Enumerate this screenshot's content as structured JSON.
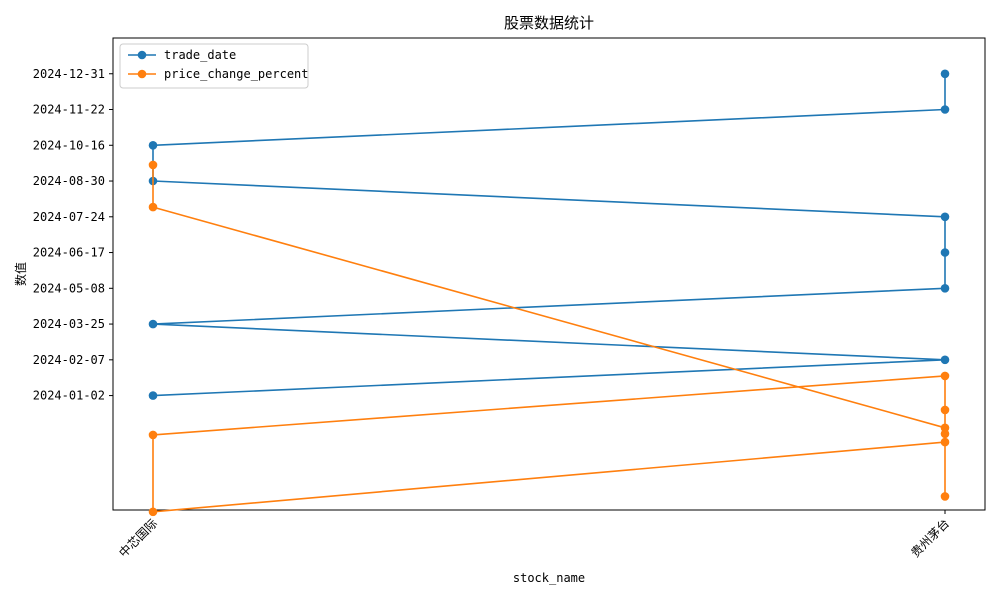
{
  "chart_data": {
    "type": "line",
    "title": "股票数据统计",
    "xlabel": "stock_name",
    "ylabel": "数值",
    "categories": [
      "中芯国际",
      "贵州茅台"
    ],
    "y_ticks": [
      "2024-01-02",
      "2024-02-07",
      "2024-03-25",
      "2024-05-08",
      "2024-06-17",
      "2024-07-24",
      "2024-08-30",
      "2024-10-16",
      "2024-11-22",
      "2024-12-31"
    ],
    "ylim": [
      -2.2,
      11.0
    ],
    "grid": false,
    "legend_position": "top-left",
    "series": [
      {
        "name": "trade_date",
        "color": "#1f77b4",
        "points": [
          {
            "x": "中芯国际",
            "y": "2024-01-02"
          },
          {
            "x": "贵州茅台",
            "y": "2024-02-07"
          },
          {
            "x": "中芯国际",
            "y": "2024-03-25"
          },
          {
            "x": "贵州茅台",
            "y": "2024-05-08"
          },
          {
            "x": "贵州茅台",
            "y": "2024-06-17"
          },
          {
            "x": "贵州茅台",
            "y": "2024-07-24"
          },
          {
            "x": "中芯国际",
            "y": "2024-08-30"
          },
          {
            "x": "中芯国际",
            "y": "2024-10-16"
          },
          {
            "x": "贵州茅台",
            "y": "2024-11-22"
          },
          {
            "x": "贵州茅台",
            "y": "2024-12-31"
          }
        ]
      },
      {
        "name": "price_change_percent",
        "color": "#ff7f0e",
        "points": [
          {
            "x": "中芯国际",
            "y": 7.45
          },
          {
            "x": "中芯国际",
            "y": 6.27
          },
          {
            "x": "贵州茅台",
            "y": 0.1
          },
          {
            "x": "贵州茅台",
            "y": 1.55
          },
          {
            "x": "中芯国际",
            "y": -0.1
          },
          {
            "x": "中芯国际",
            "y": -2.25
          },
          {
            "x": "贵州茅台",
            "y": -0.3
          },
          {
            "x": "贵州茅台",
            "y": -0.07
          },
          {
            "x": "贵州茅台",
            "y": 0.6
          },
          {
            "x": "贵州茅台",
            "y": -1.82
          }
        ]
      }
    ]
  }
}
